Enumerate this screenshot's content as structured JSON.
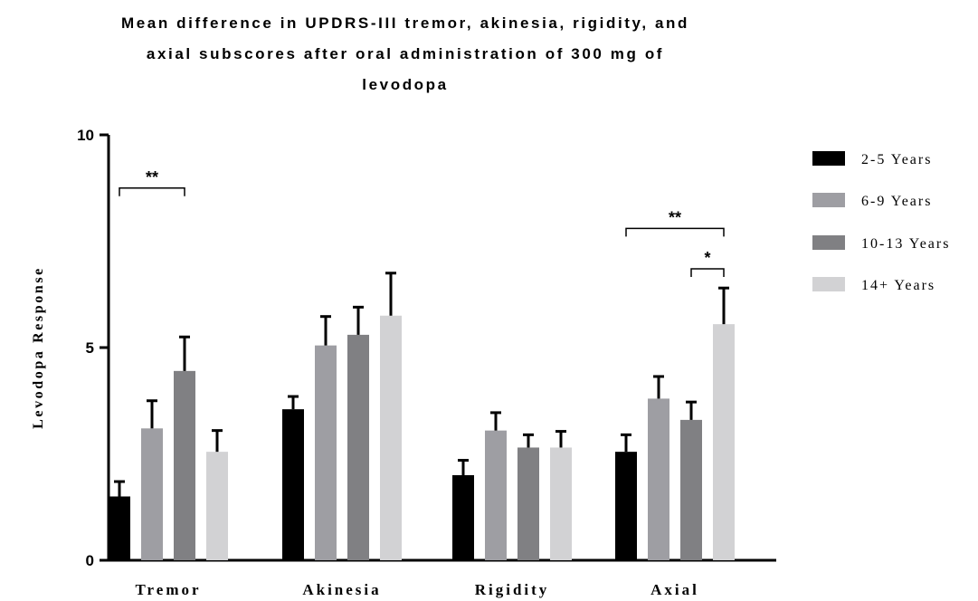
{
  "chart_data": {
    "type": "bar",
    "title_lines": [
      "Mean difference in UPDRS-III tremor, akinesia, rigidity, and",
      "axial subscores after oral administration of 300 mg of",
      "levodopa"
    ],
    "ylabel": "Levodopa Response",
    "xlabel": "",
    "ylim": [
      0,
      10
    ],
    "yticks": [
      "0",
      "5",
      "10"
    ],
    "categories": [
      "Tremor",
      "Akinesia",
      "Rigidity",
      "Axial"
    ],
    "legend_position": "right",
    "series": [
      {
        "name": "2-5 Years",
        "color": "#000000",
        "values": [
          1.5,
          3.55,
          2.0,
          2.55
        ],
        "errors": [
          0.35,
          0.3,
          0.35,
          0.4
        ]
      },
      {
        "name": "6-9 Years",
        "color": "#9e9ea3",
        "values": [
          3.1,
          5.05,
          3.05,
          3.8
        ],
        "errors": [
          0.65,
          0.68,
          0.42,
          0.52
        ]
      },
      {
        "name": "10-13 Years",
        "color": "#808083",
        "values": [
          4.45,
          5.3,
          2.65,
          3.3
        ],
        "errors": [
          0.8,
          0.65,
          0.3,
          0.42
        ]
      },
      {
        "name": "14+ Years",
        "color": "#d2d2d4",
        "values": [
          2.55,
          5.75,
          2.65,
          5.55
        ],
        "errors": [
          0.5,
          1.0,
          0.38,
          0.85
        ]
      }
    ],
    "significance": [
      {
        "category": "Tremor",
        "from_series": "2-5 Years",
        "to_series": "10-13 Years",
        "label": "**"
      },
      {
        "category": "Axial",
        "from_series": "2-5 Years",
        "to_series": "14+ Years",
        "label": "**"
      },
      {
        "category": "Axial",
        "from_series": "10-13 Years",
        "to_series": "14+ Years",
        "label": "*"
      }
    ]
  }
}
